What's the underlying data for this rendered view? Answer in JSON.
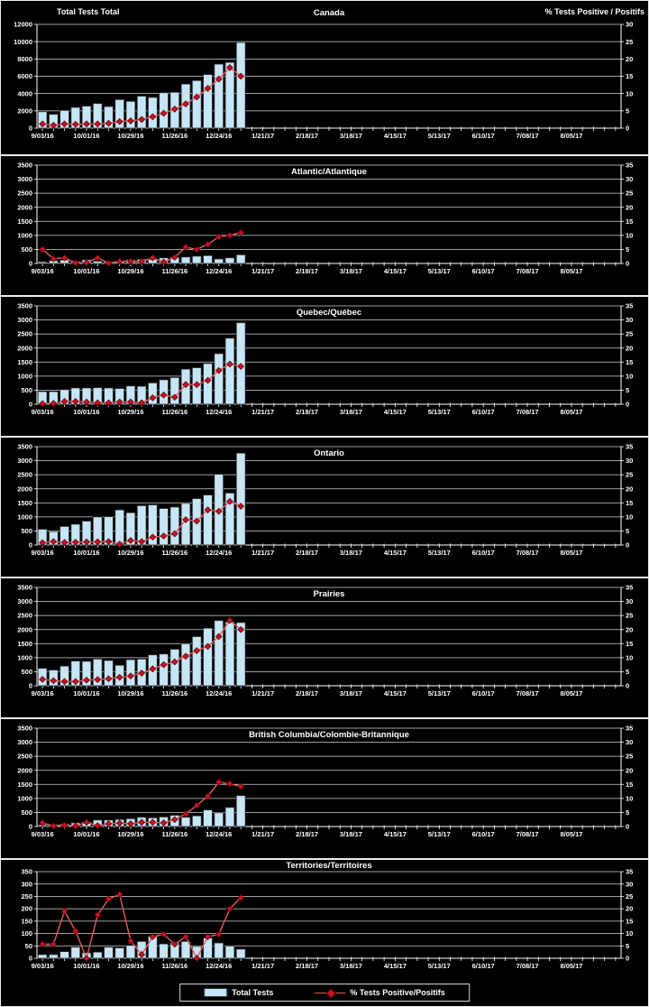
{
  "header": {
    "left_axis_title": "Total Tests Total",
    "right_axis_title": "% Tests Positive / Positifs"
  },
  "legend": {
    "total_tests_label": "Total Tests",
    "pct_positive_label": "% Tests Positive/Positifs"
  },
  "colors": {
    "background": "#000000",
    "panel_border": "#ececec",
    "grid": "#d4d4d4",
    "axis": "#ffffff",
    "text": "#ffffff",
    "bar_fill": "#c6e6f8",
    "bar_stroke": "#2e2e2e",
    "line": "#e25b5b",
    "marker_fill": "#cc1022",
    "marker_stroke": "#5a0008"
  },
  "x_axis": {
    "tick_labels": [
      "9/03/16",
      "10/01/16",
      "10/29/16",
      "11/26/16",
      "12/24/16",
      "1/21/17",
      "2/18/17",
      "3/18/17",
      "4/15/17",
      "5/13/17",
      "6/10/17",
      "7/08/17",
      "8/05/17"
    ],
    "tick_week_indices": [
      0,
      4,
      8,
      12,
      16,
      20,
      24,
      28,
      32,
      36,
      40,
      44,
      48
    ],
    "total_weeks": 53,
    "bars_start_week": 0
  },
  "chart_data": [
    {
      "type": "bar",
      "title": "Canada",
      "y_left": {
        "min": 0,
        "max": 12000,
        "step": 2000
      },
      "y_right": {
        "min": 0,
        "max": 30,
        "step": 5
      },
      "grid": true,
      "legend_position": "bottom-of-stack",
      "series": [
        {
          "name": "Total Tests",
          "type": "bar",
          "axis": "left",
          "values": [
            1900,
            1600,
            2050,
            2400,
            2550,
            2850,
            2500,
            3300,
            3100,
            3700,
            3550,
            4100,
            4150,
            5100,
            5500,
            6200,
            7400,
            7600,
            9900
          ]
        },
        {
          "name": "% Tests Positive/Positifs",
          "type": "line",
          "axis": "right",
          "values": [
            1.2,
            0.8,
            1.2,
            1.1,
            1.2,
            1.2,
            1.4,
            1.9,
            2.1,
            2.5,
            3.3,
            4.3,
            5.5,
            7.0,
            9.0,
            11.5,
            14.2,
            17.5,
            15.0
          ]
        }
      ]
    },
    {
      "type": "bar",
      "title": "Atlantic/Atlantique",
      "y_left": {
        "min": 0,
        "max": 3500,
        "step": 500
      },
      "y_right": {
        "min": 0,
        "max": 35,
        "step": 5
      },
      "grid": true,
      "series": [
        {
          "name": "Total Tests",
          "type": "bar",
          "axis": "left",
          "values": [
            60,
            100,
            120,
            70,
            130,
            80,
            60,
            90,
            130,
            150,
            140,
            200,
            220,
            230,
            260,
            280,
            160,
            200,
            310
          ]
        },
        {
          "name": "% Tests Positive/Positifs",
          "type": "line",
          "axis": "right",
          "values": [
            5.0,
            1.7,
            2.0,
            0.2,
            0.3,
            2.0,
            0.1,
            0.8,
            0.8,
            0.7,
            2.0,
            0.5,
            2.2,
            5.8,
            5.0,
            6.8,
            9.5,
            10.0,
            11.0
          ]
        }
      ]
    },
    {
      "type": "bar",
      "title": "Quebec/Québec",
      "y_left": {
        "min": 0,
        "max": 3500,
        "step": 500
      },
      "y_right": {
        "min": 0,
        "max": 35,
        "step": 5
      },
      "grid": true,
      "series": [
        {
          "name": "Total Tests",
          "type": "bar",
          "axis": "left",
          "values": [
            450,
            450,
            520,
            580,
            580,
            590,
            580,
            560,
            650,
            640,
            760,
            870,
            950,
            1250,
            1300,
            1450,
            1800,
            2350,
            2900
          ]
        },
        {
          "name": "% Tests Positive/Positifs",
          "type": "line",
          "axis": "right",
          "values": [
            0.2,
            0.3,
            1.0,
            1.0,
            0.8,
            0.5,
            0.5,
            0.8,
            0.8,
            0.5,
            2.3,
            3.3,
            2.5,
            7.0,
            7.0,
            8.5,
            12.0,
            14.3,
            13.5
          ]
        }
      ]
    },
    {
      "type": "bar",
      "title": "Ontario",
      "y_left": {
        "min": 0,
        "max": 3500,
        "step": 500
      },
      "y_right": {
        "min": 0,
        "max": 35,
        "step": 5
      },
      "grid": true,
      "series": [
        {
          "name": "Total Tests",
          "type": "bar",
          "axis": "left",
          "values": [
            560,
            480,
            660,
            740,
            850,
            1000,
            1010,
            1250,
            1150,
            1400,
            1430,
            1300,
            1350,
            1480,
            1650,
            1780,
            2520,
            1850,
            3270
          ]
        },
        {
          "name": "% Tests Positive/Positifs",
          "type": "line",
          "axis": "right",
          "values": [
            0.8,
            1.2,
            0.9,
            1.0,
            1.1,
            1.1,
            1.2,
            0.3,
            1.6,
            1.2,
            2.8,
            3.2,
            4.0,
            9.0,
            8.5,
            12.5,
            12.0,
            15.5,
            13.8
          ]
        }
      ]
    },
    {
      "type": "bar",
      "title": "Prairies",
      "y_left": {
        "min": 0,
        "max": 3500,
        "step": 500
      },
      "y_right": {
        "min": 0,
        "max": 35,
        "step": 5
      },
      "grid": true,
      "series": [
        {
          "name": "Total Tests",
          "type": "bar",
          "axis": "left",
          "values": [
            620,
            560,
            700,
            880,
            870,
            950,
            900,
            730,
            930,
            950,
            1100,
            1130,
            1300,
            1500,
            1750,
            2050,
            2320,
            2270,
            2250
          ]
        },
        {
          "name": "% Tests Positive/Positifs",
          "type": "line",
          "axis": "right",
          "values": [
            2.3,
            1.8,
            1.5,
            1.5,
            2.0,
            2.2,
            2.5,
            3.0,
            3.5,
            4.5,
            6.0,
            7.5,
            8.5,
            10.5,
            12.5,
            14.0,
            17.5,
            23.3,
            20.0
          ]
        }
      ]
    },
    {
      "type": "bar",
      "title": "British Columbia/Colombie-Britannique",
      "y_left": {
        "min": 0,
        "max": 3500,
        "step": 500
      },
      "y_right": {
        "min": 0,
        "max": 35,
        "step": 5
      },
      "grid": true,
      "series": [
        {
          "name": "Total Tests",
          "type": "bar",
          "axis": "left",
          "values": [
            60,
            70,
            90,
            130,
            160,
            230,
            230,
            250,
            280,
            330,
            310,
            340,
            400,
            330,
            380,
            590,
            490,
            680,
            1100
          ]
        },
        {
          "name": "% Tests Positive/Positifs",
          "type": "line",
          "axis": "right",
          "values": [
            1.3,
            0.2,
            0.5,
            0.2,
            1.5,
            0.3,
            1.0,
            1.2,
            1.0,
            1.5,
            1.5,
            1.3,
            2.5,
            4.5,
            7.5,
            10.8,
            15.8,
            15.2,
            14.3
          ]
        }
      ]
    },
    {
      "type": "bar",
      "title": "Territories/Territoires",
      "y_left": {
        "min": 0,
        "max": 350,
        "step": 50
      },
      "y_right": {
        "min": 0,
        "max": 35,
        "step": 5
      },
      "grid": true,
      "series": [
        {
          "name": "Total Tests",
          "type": "bar",
          "axis": "left",
          "values": [
            15,
            15,
            27,
            45,
            22,
            25,
            45,
            42,
            52,
            68,
            90,
            58,
            62,
            68,
            48,
            82,
            62,
            50,
            37
          ]
        },
        {
          "name": "% Tests Positive/Positifs",
          "type": "line",
          "axis": "right",
          "values": [
            5.7,
            5.7,
            19.0,
            11.0,
            0.0,
            17.5,
            24.0,
            25.8,
            7.0,
            1.5,
            8.7,
            9.7,
            5.7,
            8.7,
            0.0,
            8.7,
            9.7,
            20.0,
            24.5
          ]
        }
      ]
    }
  ]
}
